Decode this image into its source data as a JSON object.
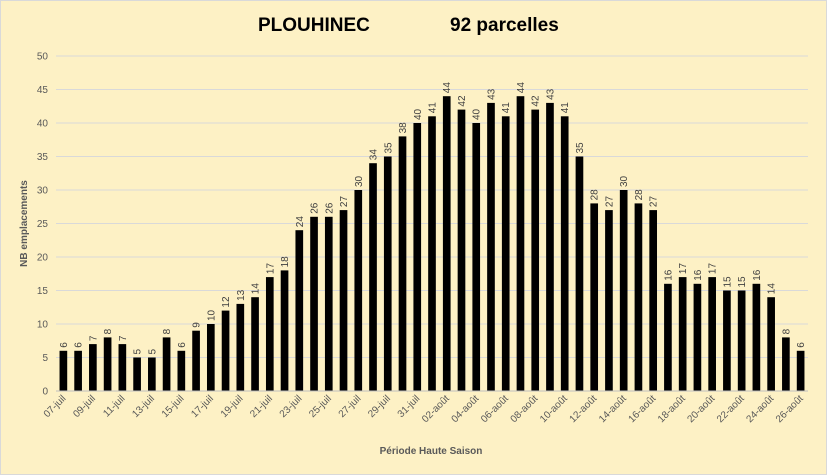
{
  "chart_data": {
    "type": "bar",
    "title": "PLOUHINEC",
    "subtitle": "92 parcelles",
    "xlabel": "Période Haute Saison",
    "ylabel": "NB emplacements",
    "ylim": [
      0,
      50
    ],
    "yticks": [
      0,
      5,
      10,
      15,
      20,
      25,
      30,
      35,
      40,
      45,
      50
    ],
    "grid": true,
    "legend": "none",
    "bar_color": "#000000",
    "categories": [
      "07-juil",
      "08-juil",
      "09-juil",
      "10-juil",
      "11-juil",
      "12-juil",
      "13-juil",
      "14-juil",
      "15-juil",
      "16-juil",
      "17-juil",
      "18-juil",
      "19-juil",
      "20-juil",
      "21-juil",
      "22-juil",
      "23-juil",
      "24-juil",
      "25-juil",
      "26-juil",
      "27-juil",
      "28-juil",
      "29-juil",
      "30-juil",
      "31-juil",
      "01-août",
      "02-août",
      "03-août",
      "04-août",
      "05-août",
      "06-août",
      "07-août",
      "08-août",
      "09-août",
      "10-août",
      "11-août",
      "12-août",
      "13-août",
      "14-août",
      "15-août",
      "16-août",
      "17-août",
      "18-août",
      "19-août",
      "20-août",
      "21-août",
      "22-août",
      "23-août",
      "24-août",
      "25-août",
      "26-août"
    ],
    "values": [
      6,
      6,
      7,
      8,
      7,
      5,
      5,
      8,
      6,
      9,
      10,
      12,
      13,
      14,
      17,
      18,
      24,
      26,
      26,
      27,
      30,
      34,
      35,
      38,
      40,
      41,
      44,
      42,
      40,
      43,
      41,
      44,
      42,
      43,
      41,
      35,
      28,
      27,
      30,
      28,
      27,
      16,
      17,
      16,
      17,
      15,
      15,
      16,
      14,
      8,
      6
    ],
    "tick_every": 2
  }
}
